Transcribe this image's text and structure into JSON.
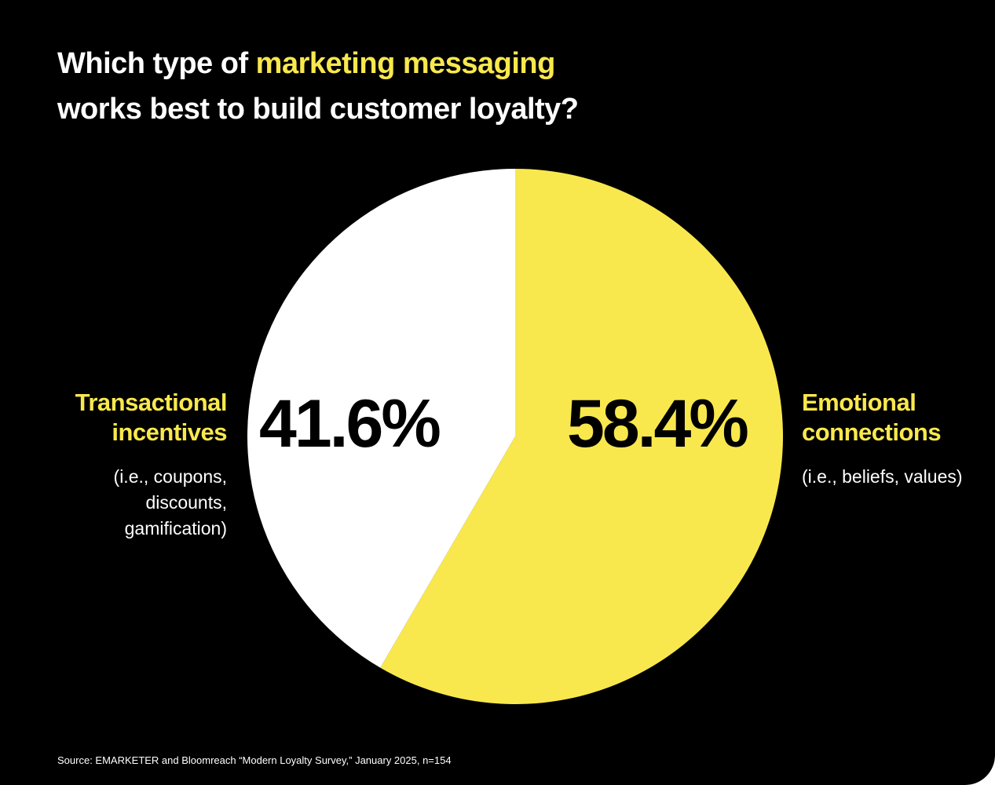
{
  "title": {
    "prefix": "Which type of",
    "highlight": "marketing messaging",
    "line2": "works best to build customer loyalty?"
  },
  "colors": {
    "background": "#000000",
    "accent": "#f9e84d",
    "secondary_slice": "#ffffff"
  },
  "chart_data": {
    "type": "pie",
    "start_angle_deg": 0,
    "direction": "clockwise",
    "slices": [
      {
        "label_line1": "Emotional",
        "label_line2": "connections",
        "note": "(i.e., beliefs, values)",
        "value": 58.4,
        "value_label": "58.4%",
        "color": "#f9e84d"
      },
      {
        "label_line1": "Transactional",
        "label_line2": "incentives",
        "note_line1": "(i.e., coupons,",
        "note_line2": "discounts,",
        "note_line3": "gamification)",
        "value": 41.6,
        "value_label": "41.6%",
        "color": "#ffffff"
      }
    ]
  },
  "source": "Source: EMARKETER and Bloomreach “Modern Loyalty Survey,” January 2025, n=154"
}
